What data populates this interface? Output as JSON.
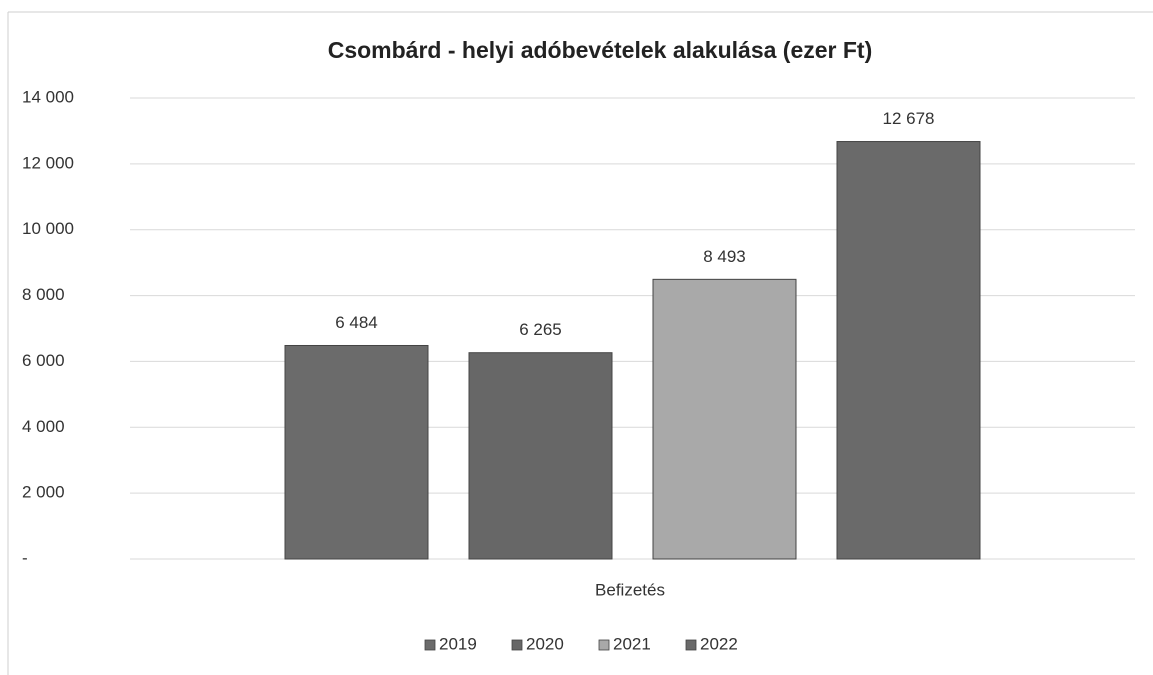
{
  "chart_data": {
    "type": "bar",
    "title": "Csombárd - helyi adóbevételek alakulása (ezer Ft)",
    "x_label": "Befizetés",
    "categories": [
      "Befizetés"
    ],
    "series": [
      {
        "name": "2019",
        "color": "#6b6b6b",
        "values": [
          6484
        ],
        "value_labels": [
          "6 484"
        ]
      },
      {
        "name": "2020",
        "color": "#676767",
        "values": [
          6265
        ],
        "value_labels": [
          "6 265"
        ]
      },
      {
        "name": "2021",
        "color": "#a9a9a9",
        "values": [
          8493
        ],
        "value_labels": [
          "8 493"
        ]
      },
      {
        "name": "2022",
        "color": "#6a6a6a",
        "values": [
          12678
        ],
        "value_labels": [
          "12 678"
        ]
      }
    ],
    "ylim": [
      0,
      14000
    ],
    "yticks": [
      {
        "value": 0,
        "label": "-"
      },
      {
        "value": 2000,
        "label": "2 000"
      },
      {
        "value": 4000,
        "label": "4 000"
      },
      {
        "value": 6000,
        "label": "6 000"
      },
      {
        "value": 8000,
        "label": "8 000"
      },
      {
        "value": 10000,
        "label": "10 000"
      },
      {
        "value": 12000,
        "label": "12 000"
      },
      {
        "value": 14000,
        "label": "14 000"
      }
    ],
    "grid": true,
    "legend": "bottom"
  }
}
